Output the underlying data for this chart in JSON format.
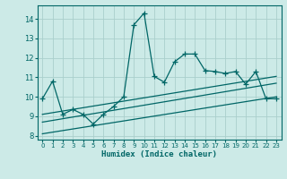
{
  "xlabel": "Humidex (Indice chaleur)",
  "bg_color": "#cceae7",
  "grid_color": "#aacfcc",
  "line_color": "#006666",
  "xlim": [
    -0.5,
    23.5
  ],
  "ylim": [
    7.8,
    14.7
  ],
  "yticks": [
    8,
    9,
    10,
    11,
    12,
    13,
    14
  ],
  "xticks": [
    0,
    1,
    2,
    3,
    4,
    5,
    6,
    7,
    8,
    9,
    10,
    11,
    12,
    13,
    14,
    15,
    16,
    17,
    18,
    19,
    20,
    21,
    22,
    23
  ],
  "main_series": {
    "x": [
      0,
      1,
      2,
      3,
      4,
      5,
      6,
      7,
      8,
      9,
      10,
      11,
      12,
      13,
      14,
      15,
      16,
      17,
      18,
      19,
      20,
      21,
      22,
      23
    ],
    "y": [
      9.9,
      10.8,
      9.1,
      9.35,
      9.1,
      8.6,
      9.1,
      9.5,
      10.0,
      13.7,
      14.3,
      11.05,
      10.75,
      11.8,
      12.2,
      12.2,
      11.35,
      11.3,
      11.2,
      11.3,
      10.65,
      11.3,
      9.9,
      9.9
    ]
  },
  "trend_lines": [
    {
      "x": [
        0,
        23
      ],
      "y": [
        9.1,
        11.05
      ]
    },
    {
      "x": [
        0,
        23
      ],
      "y": [
        8.7,
        10.7
      ]
    },
    {
      "x": [
        0,
        23
      ],
      "y": [
        8.1,
        10.0
      ]
    }
  ]
}
